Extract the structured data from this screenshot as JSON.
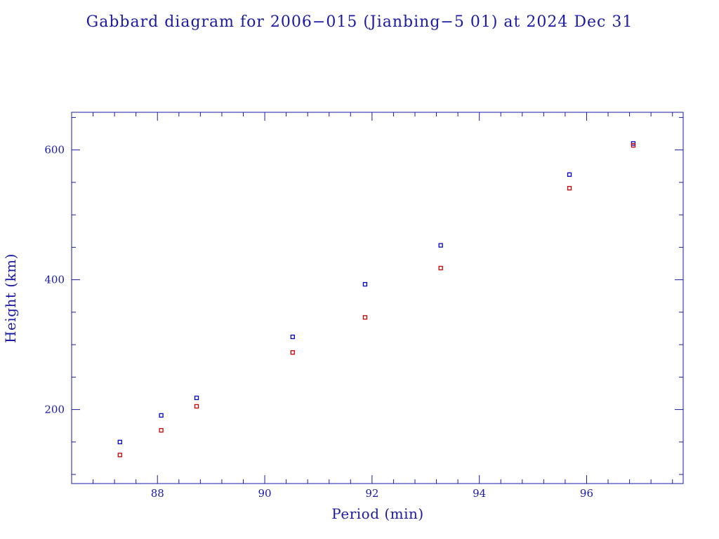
{
  "chart_data": {
    "type": "scatter",
    "title": "Gabbard diagram for 2006−015 (Jianbing−5 01) at 2024 Dec 31",
    "xlabel": "Period (min)",
    "ylabel": "Height (km)",
    "xlim": [
      86.4,
      97.8
    ],
    "ylim": [
      86,
      658
    ],
    "x_ticks": [
      88,
      90,
      92,
      94,
      96
    ],
    "y_ticks": [
      200,
      400,
      600
    ],
    "x_minor_step": 0.4,
    "y_minor_step": 50,
    "grid": false,
    "legend": "none",
    "series": [
      {
        "color": "#0000cc",
        "points": [
          {
            "x": 87.3,
            "y": 150
          },
          {
            "x": 88.07,
            "y": 191
          },
          {
            "x": 88.73,
            "y": 218
          },
          {
            "x": 90.52,
            "y": 312
          },
          {
            "x": 91.87,
            "y": 393
          },
          {
            "x": 93.28,
            "y": 453
          },
          {
            "x": 95.68,
            "y": 562
          },
          {
            "x": 96.87,
            "y": 610
          }
        ]
      },
      {
        "color": "#cc0000",
        "points": [
          {
            "x": 87.3,
            "y": 130
          },
          {
            "x": 88.07,
            "y": 168
          },
          {
            "x": 88.73,
            "y": 205
          },
          {
            "x": 90.52,
            "y": 288
          },
          {
            "x": 91.87,
            "y": 342
          },
          {
            "x": 93.28,
            "y": 418
          },
          {
            "x": 95.68,
            "y": 541
          },
          {
            "x": 96.87,
            "y": 607
          }
        ]
      }
    ]
  }
}
